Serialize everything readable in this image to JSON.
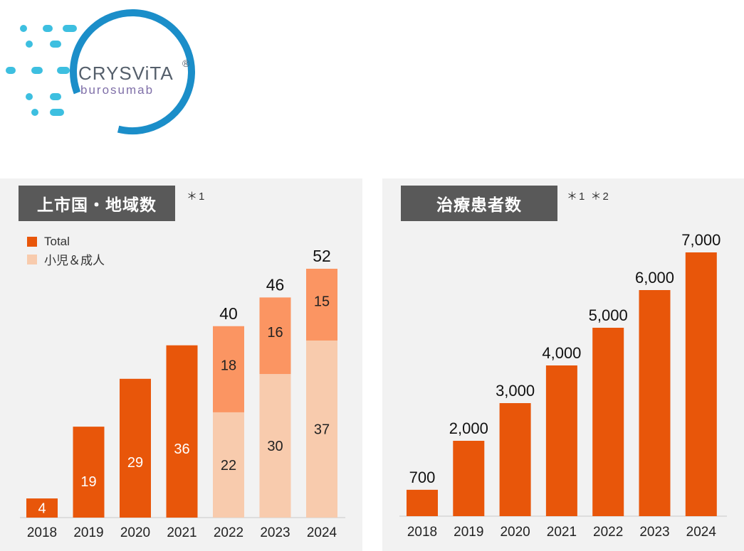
{
  "logo": {
    "brand": "CRYSViTA",
    "registered": "®",
    "generic": "burosumab",
    "colors": {
      "ring": "#1b8ec9",
      "dashes": "#3dbfe0",
      "text": "#555f6b",
      "generic": "#7f6fa8"
    }
  },
  "colors": {
    "total": "#e8560a",
    "adult": "#fb9562",
    "child": "#f8cbad",
    "panel": "#f2f2f2",
    "title_box": "#595959"
  },
  "chart_data": [
    {
      "type": "bar",
      "title": "上市国・地域数",
      "note": "＊1",
      "legend_placement": "top-left",
      "legend": [
        {
          "label": "Total",
          "color": "#e8560a"
        },
        {
          "label": "小児＆成人",
          "color": "#f8cbad"
        }
      ],
      "categories": [
        "2018",
        "2019",
        "2020",
        "2021",
        "2022",
        "2023",
        "2024"
      ],
      "totals": [
        4,
        19,
        29,
        36,
        40,
        46,
        52
      ],
      "total_labels": [
        "",
        "",
        "",
        "",
        "40",
        "46",
        "52"
      ],
      "series": [
        {
          "name": "Total",
          "values": [
            4,
            19,
            29,
            36,
            null,
            null,
            null
          ]
        },
        {
          "name": "小児＆成人",
          "values": [
            null,
            null,
            null,
            null,
            22,
            30,
            37
          ]
        },
        {
          "name": "",
          "values": [
            null,
            null,
            null,
            null,
            18,
            16,
            15
          ]
        }
      ],
      "ylim": [
        0,
        55
      ]
    },
    {
      "type": "bar",
      "title": "治療患者数",
      "note": "＊1 ＊2",
      "categories": [
        "2018",
        "2019",
        "2020",
        "2021",
        "2022",
        "2023",
        "2024"
      ],
      "values": [
        700,
        2000,
        3000,
        4000,
        5000,
        6000,
        7000
      ],
      "value_labels": [
        "700",
        "2,000",
        "3,000",
        "4,000",
        "5,000",
        "6,000",
        "7,000"
      ],
      "ylim": [
        0,
        7200
      ]
    }
  ]
}
